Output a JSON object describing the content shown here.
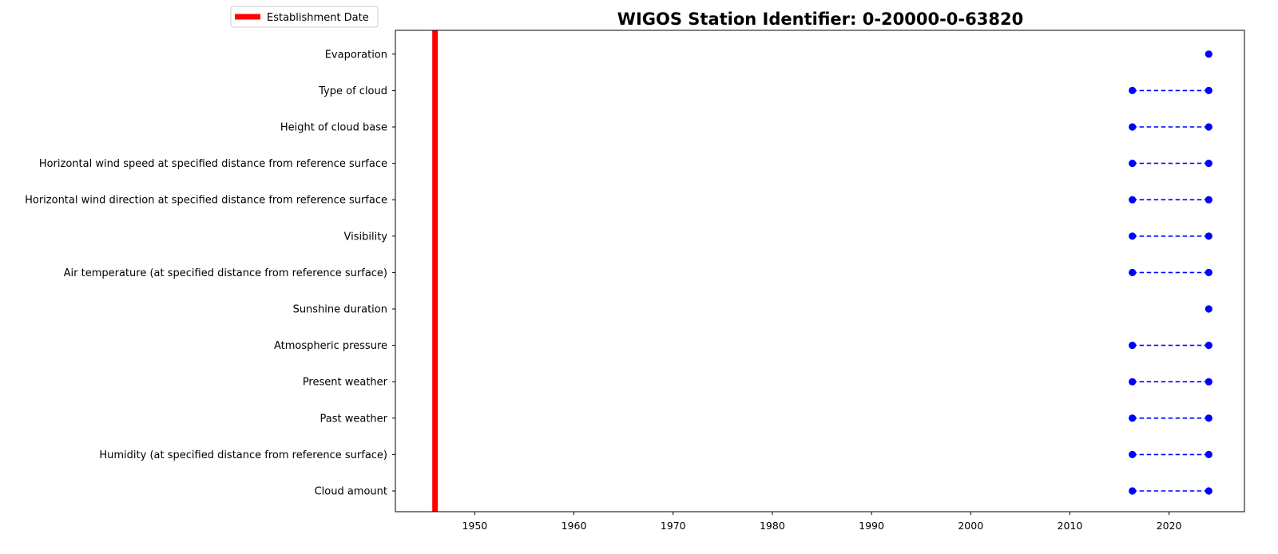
{
  "chart_data": {
    "type": "scatter",
    "title": "WIGOS Station Identifier: 0-20000-0-63820",
    "xlabel": "",
    "ylabel": "",
    "xlim": [
      1942,
      2027.6
    ],
    "x_ticks": [
      1950,
      1960,
      1970,
      1980,
      1990,
      2000,
      2010,
      2020
    ],
    "grid": false,
    "legend": {
      "placement": "upper-left, above axes",
      "entries": [
        {
          "label": "Establishment Date",
          "color": "#ff0000",
          "style": "thick-line"
        }
      ]
    },
    "establishment_date": 1946,
    "series_color": "#0000ff",
    "categories": [
      "Cloud amount",
      "Humidity  (at specified distance from reference surface)",
      "Past weather",
      "Present weather",
      "Atmospheric pressure",
      "Sunshine duration",
      "Air temperature (at specified distance from reference surface)",
      "Visibility",
      "Horizontal wind direction at specified distance from reference surface",
      "Horizontal wind speed at specified distance from reference surface",
      "Height of cloud base",
      "Type of cloud",
      "Evaporation"
    ],
    "ranges": [
      {
        "variable": "Cloud amount",
        "start": 2016.3,
        "end": 2024
      },
      {
        "variable": "Humidity  (at specified distance from reference surface)",
        "start": 2016.3,
        "end": 2024
      },
      {
        "variable": "Past weather",
        "start": 2016.3,
        "end": 2024
      },
      {
        "variable": "Present weather",
        "start": 2016.3,
        "end": 2024
      },
      {
        "variable": "Atmospheric pressure",
        "start": 2016.3,
        "end": 2024
      },
      {
        "variable": "Sunshine duration",
        "start": 2024,
        "end": 2024
      },
      {
        "variable": "Air temperature (at specified distance from reference surface)",
        "start": 2016.3,
        "end": 2024
      },
      {
        "variable": "Visibility",
        "start": 2016.3,
        "end": 2024
      },
      {
        "variable": "Horizontal wind direction at specified distance from reference surface",
        "start": 2016.3,
        "end": 2024
      },
      {
        "variable": "Horizontal wind speed at specified distance from reference surface",
        "start": 2016.3,
        "end": 2024
      },
      {
        "variable": "Height of cloud base",
        "start": 2016.3,
        "end": 2024
      },
      {
        "variable": "Type of cloud",
        "start": 2016.3,
        "end": 2024
      },
      {
        "variable": "Evaporation",
        "start": 2024,
        "end": 2024
      }
    ]
  }
}
